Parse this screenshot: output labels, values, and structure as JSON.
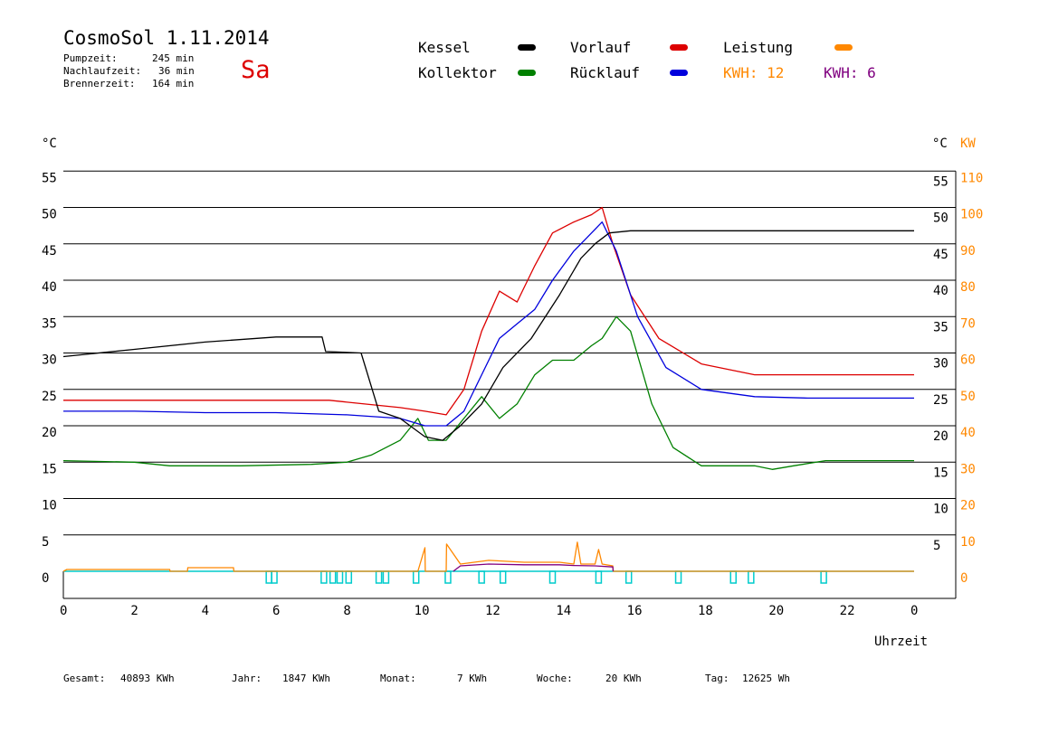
{
  "header": {
    "title": "CosmoSol 1.11.2014",
    "day": "Sa",
    "stats": [
      {
        "label": "Pumpzeit:",
        "value": "245 min"
      },
      {
        "label": "Nachlaufzeit:",
        "value": "36 min"
      },
      {
        "label": "Brennerzeit:",
        "value": "164 min"
      }
    ]
  },
  "legend": {
    "items": [
      {
        "label": "Kessel",
        "color": "#000000"
      },
      {
        "label": "Vorlauf",
        "color": "#dd0000"
      },
      {
        "label": "Leistung",
        "color": "#ff8800"
      },
      {
        "label": "Kollektor",
        "color": "#008000"
      },
      {
        "label": "Rücklauf",
        "color": "#0000dd"
      }
    ],
    "kwh1": "KWH: 12",
    "kwh1_color": "#ff8800",
    "kwh2": "KWH: 6",
    "kwh2_color": "#800080"
  },
  "footer": {
    "gesamt_label": "Gesamt:",
    "gesamt_value": "40893 KWh",
    "jahr_label": "Jahr:",
    "jahr_value": "1847 KWh",
    "monat_label": "Monat:",
    "monat_value": "7 KWh",
    "woche_label": "Woche:",
    "woche_value": "20 KWh",
    "tag_label": "Tag:",
    "tag_value": "12625 Wh"
  },
  "chart_data": {
    "type": "line",
    "title": "CosmoSol 1.11.2014",
    "xlabel": "Uhrzeit",
    "ylabel_left": "°C",
    "ylabel_right_1": "°C",
    "ylabel_right_2": "KW",
    "xlim": [
      0,
      24
    ],
    "ylim": [
      0,
      55
    ],
    "x_ticks": [
      "0",
      "2",
      "4",
      "6",
      "8",
      "10",
      "12",
      "14",
      "16",
      "18",
      "20",
      "22",
      "0"
    ],
    "y_ticks_left": [
      "0",
      "5",
      "10",
      "15",
      "20",
      "25",
      "30",
      "35",
      "40",
      "45",
      "50",
      "55"
    ],
    "y_ticks_right": [
      "5",
      "10",
      "15",
      "20",
      "25",
      "30",
      "35",
      "40",
      "45",
      "50",
      "55"
    ],
    "kw_ticks": [
      "0",
      "10",
      "20",
      "30",
      "40",
      "50",
      "60",
      "70",
      "80",
      "90",
      "100",
      "110"
    ],
    "grid": true,
    "series": [
      {
        "name": "Kessel",
        "color": "#000000",
        "x": [
          0,
          2,
          4,
          6,
          7.3,
          7.4,
          8.4,
          8.9,
          9.5,
          10.2,
          10.7,
          11.2,
          11.8,
          12.4,
          13.2,
          14.0,
          14.6,
          15.0,
          15.4,
          16.0,
          24.0
        ],
        "y": [
          29.5,
          30.5,
          31.5,
          32.2,
          32.2,
          30.2,
          30.0,
          22.0,
          21.0,
          18.5,
          18.0,
          20.0,
          23.0,
          28.0,
          32.0,
          38.0,
          43.0,
          45.0,
          46.5,
          46.8,
          46.8
        ]
      },
      {
        "name": "Vorlauf",
        "color": "#dd0000",
        "x": [
          0,
          2,
          4,
          6,
          7.5,
          8.5,
          9.5,
          10.2,
          10.8,
          11.3,
          11.8,
          12.3,
          12.8,
          13.3,
          13.8,
          14.4,
          14.9,
          15.2,
          15.5,
          16.0,
          16.8,
          18.0,
          19.5,
          21.0,
          24.0
        ],
        "y": [
          23.5,
          23.5,
          23.5,
          23.5,
          23.5,
          23.0,
          22.5,
          22.0,
          21.5,
          25.0,
          33.0,
          38.5,
          37.0,
          42.0,
          46.5,
          48.0,
          49.0,
          50.0,
          45.0,
          38.0,
          32.0,
          28.5,
          27.0,
          27.0,
          27.0
        ]
      },
      {
        "name": "Rücklauf",
        "color": "#0000dd",
        "x": [
          0,
          2,
          4,
          6,
          8,
          9.5,
          10.2,
          10.8,
          11.3,
          11.8,
          12.3,
          12.8,
          13.3,
          13.8,
          14.4,
          14.9,
          15.2,
          15.6,
          16.2,
          17.0,
          18.0,
          19.5,
          21.0,
          24.0
        ],
        "y": [
          22.0,
          22.0,
          21.8,
          21.8,
          21.5,
          21.0,
          20.0,
          20.0,
          22.0,
          27.0,
          32.0,
          34.0,
          36.0,
          40.0,
          44.0,
          46.5,
          48.0,
          44.0,
          35.0,
          28.0,
          25.0,
          24.0,
          23.8,
          23.8
        ]
      },
      {
        "name": "Kollektor",
        "color": "#008000",
        "x": [
          0,
          2,
          3,
          5,
          7,
          8,
          8.7,
          9.5,
          10.0,
          10.3,
          10.8,
          11.3,
          11.8,
          12.3,
          12.8,
          13.3,
          13.8,
          14.4,
          14.9,
          15.2,
          15.6,
          16.0,
          16.6,
          17.2,
          18.0,
          19.5,
          20.0,
          20.6,
          21.5,
          22.5,
          24.0
        ],
        "y": [
          15.2,
          15.0,
          14.5,
          14.5,
          14.7,
          15.0,
          16.0,
          18.0,
          21.0,
          18.0,
          18.0,
          21.0,
          24.0,
          21.0,
          23.0,
          27.0,
          29.0,
          29.0,
          31.0,
          32.0,
          35.0,
          33.0,
          23.0,
          17.0,
          14.5,
          14.5,
          14.0,
          14.5,
          15.2,
          15.2,
          15.2
        ]
      }
    ],
    "leistung_kw": {
      "name": "Leistung",
      "color": "#ff8800",
      "x": [
        0,
        0.1,
        3.0,
        3.01,
        3.5,
        3.51,
        4.8,
        4.81,
        10.0,
        10.2,
        10.21,
        10.8,
        10.81,
        11.2,
        12.0,
        13.0,
        14.0,
        14.4,
        14.5,
        14.6,
        15.0,
        15.1,
        15.2,
        15.5,
        15.51,
        24.0
      ],
      "y": [
        0,
        0.5,
        0.5,
        0,
        0,
        1.0,
        1.0,
        0,
        0,
        6.5,
        0,
        0,
        7.5,
        2.0,
        3.0,
        2.5,
        2.5,
        2.0,
        8.0,
        2.0,
        2.0,
        6.0,
        2.0,
        1.5,
        0,
        0
      ]
    },
    "leistung2": {
      "name": "KWH 6",
      "color": "#800080",
      "x": [
        11.0,
        11.2,
        12.0,
        13.0,
        14.0,
        14.4,
        15.0,
        15.5,
        15.51
      ],
      "y": [
        0,
        1.5,
        2.0,
        1.8,
        1.8,
        1.6,
        1.5,
        1.2,
        0
      ]
    },
    "pump_markers": {
      "color": "#00cccc",
      "hours": [
        5.8,
        5.95,
        7.35,
        7.6,
        7.8,
        8.05,
        8.9,
        9.1,
        9.95,
        10.85,
        11.8,
        12.4,
        13.8,
        15.1,
        15.95,
        17.35,
        18.9,
        19.4,
        21.45
      ]
    }
  }
}
